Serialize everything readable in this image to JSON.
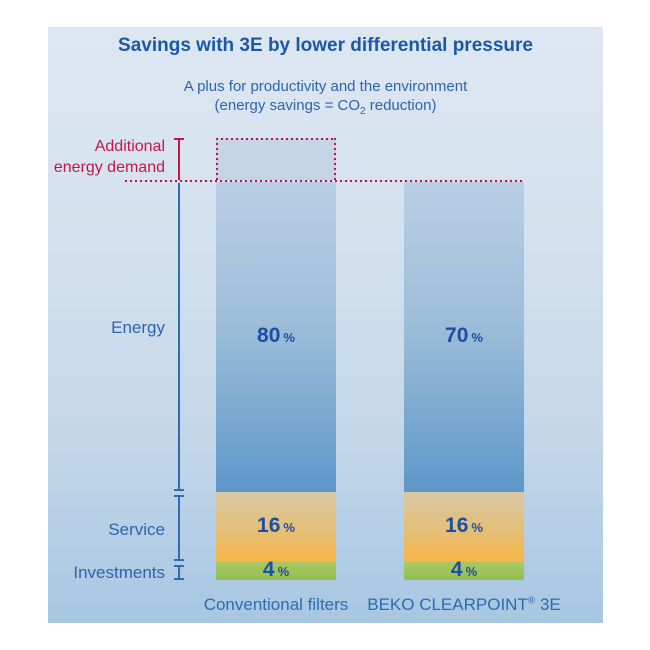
{
  "title": "Savings with 3E by lower differential pressure",
  "subtitle": {
    "line1": "A plus for productivity and the environment",
    "line2_pre": "(energy savings = CO",
    "line2_sub": "2",
    "line2_post": " reduction)"
  },
  "left_labels": {
    "additional_line1": "Additional",
    "additional_line2": "energy demand",
    "energy": "Energy",
    "service": "Service",
    "investments": "Investments"
  },
  "bars": [
    {
      "category_pre": "Conventional filters",
      "category_reg": "",
      "category_post": "",
      "energy": {
        "value": "80",
        "unit": "%"
      },
      "service": {
        "value": "16",
        "unit": "%"
      },
      "investments": {
        "value": "4",
        "unit": "%"
      }
    },
    {
      "category_pre": "BEKO CLEARPOINT",
      "category_reg": "®",
      "category_post": " 3E",
      "energy": {
        "value": "70",
        "unit": "%"
      },
      "service": {
        "value": "16",
        "unit": "%"
      },
      "investments": {
        "value": "4",
        "unit": "%"
      }
    }
  ],
  "chart_data": {
    "type": "bar",
    "stacked": true,
    "title": "Savings with 3E by lower differential pressure",
    "subtitle": "A plus for productivity and the environment (energy savings = CO2 reduction)",
    "categories": [
      "Conventional filters",
      "BEKO CLEARPOINT® 3E"
    ],
    "series": [
      {
        "name": "Energy",
        "values_pct": [
          80,
          70
        ]
      },
      {
        "name": "Service",
        "values_pct": [
          16,
          16
        ]
      },
      {
        "name": "Investments",
        "values_pct": [
          4,
          4
        ]
      },
      {
        "name": "Additional energy demand",
        "values_pct": [
          10,
          0
        ],
        "style": "dotted-red-outline-above-bar"
      }
    ],
    "legend_position": "left axis brackets",
    "grid": false,
    "annotations": [
      "dotted red horizontal reference line at top of both bars",
      "dotted red box above Conventional filters bar marks additional energy demand"
    ]
  },
  "colors": {
    "panel_bg_top": "#dde7f2",
    "panel_bg_bottom": "#a7c7e2",
    "title_blue": "#1b59a8",
    "subtitle_blue": "#2b65ae",
    "value_blue": "#1c4ea3",
    "axis_blue": "#2e6cb3",
    "accent_red": "#c41747",
    "energy_top": "#b9cee5",
    "energy_bottom": "#5d98ca",
    "service_top": "#d8c8a4",
    "service_bottom": "#f9b645",
    "investments_top": "#aac766",
    "investments_bottom": "#93c04e"
  }
}
